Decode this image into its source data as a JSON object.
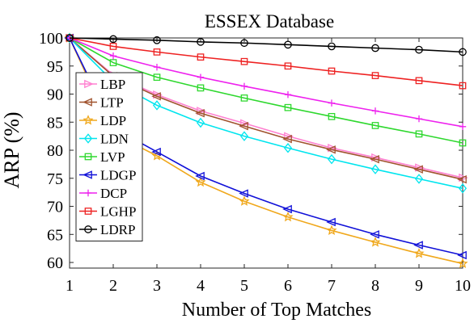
{
  "chart_data": {
    "type": "line",
    "title": "ESSEX Database",
    "xlabel": "Number of Top Matches",
    "ylabel": "ARP (%)",
    "x": [
      1,
      2,
      3,
      4,
      5,
      6,
      7,
      8,
      9,
      10
    ],
    "xlim": [
      1,
      10
    ],
    "ylim": [
      59,
      100
    ],
    "xticks": [
      1,
      2,
      3,
      4,
      5,
      6,
      7,
      8,
      9,
      10
    ],
    "yticks": [
      60,
      65,
      70,
      75,
      80,
      85,
      90,
      95,
      100
    ],
    "grid": false,
    "legend_position": "left",
    "series": [
      {
        "name": "LBP",
        "color": "#ff80d0",
        "marker": "triangle-right",
        "values": [
          100,
          93.4,
          89.9,
          87.0,
          84.8,
          82.5,
          80.4,
          78.7,
          76.9,
          75.1
        ]
      },
      {
        "name": "LTP",
        "color": "#a0522d",
        "marker": "triangle-left",
        "values": [
          100,
          93.2,
          89.6,
          86.6,
          84.3,
          82.0,
          80.1,
          78.4,
          76.6,
          74.8
        ]
      },
      {
        "name": "LDP",
        "color": "#f0a81c",
        "marker": "star",
        "values": [
          100,
          83.0,
          79.0,
          74.3,
          70.9,
          68.1,
          65.7,
          63.6,
          61.6,
          59.8
        ]
      },
      {
        "name": "LDN",
        "color": "#00e5ee",
        "marker": "diamond",
        "values": [
          100,
          92.2,
          88.0,
          84.9,
          82.5,
          80.4,
          78.4,
          76.6,
          74.9,
          73.2
        ]
      },
      {
        "name": "LVP",
        "color": "#2ed82e",
        "marker": "square",
        "values": [
          100,
          95.6,
          93.0,
          91.1,
          89.3,
          87.6,
          86.0,
          84.4,
          82.9,
          81.3
        ]
      },
      {
        "name": "LDGP",
        "color": "#1010d8",
        "marker": "triangle-left",
        "values": [
          100,
          84.0,
          79.7,
          75.4,
          72.3,
          69.5,
          67.2,
          65.0,
          63.1,
          61.3
        ]
      },
      {
        "name": "DCP",
        "color": "#ee22ee",
        "marker": "plus",
        "values": [
          100,
          96.8,
          94.8,
          93.0,
          91.4,
          89.9,
          88.4,
          87.0,
          85.6,
          84.2
        ]
      },
      {
        "name": "LGHP",
        "color": "#ee2222",
        "marker": "square",
        "values": [
          100,
          98.5,
          97.5,
          96.6,
          95.8,
          95.0,
          94.1,
          93.3,
          92.4,
          91.5
        ]
      },
      {
        "name": "LDRP",
        "color": "#000000",
        "marker": "circle",
        "values": [
          100,
          99.8,
          99.6,
          99.3,
          99.1,
          98.8,
          98.5,
          98.2,
          97.9,
          97.5
        ]
      }
    ]
  }
}
